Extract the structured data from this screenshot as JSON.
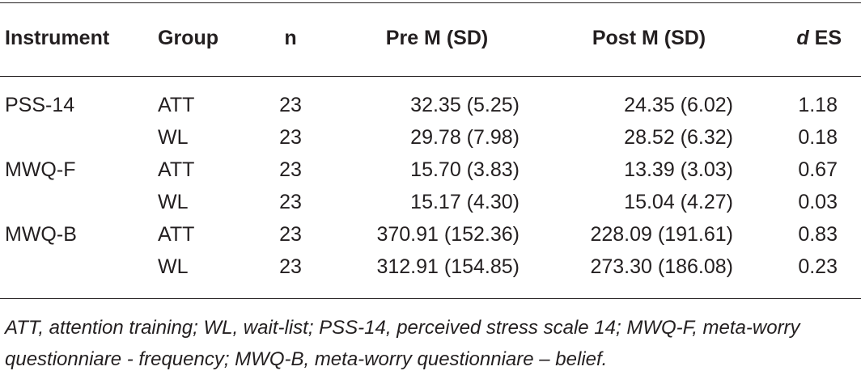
{
  "table": {
    "headers": {
      "instrument": "Instrument",
      "group": "Group",
      "n": "n",
      "pre": "Pre M (SD)",
      "post": "Post M (SD)",
      "es_italic": "d",
      "es": " ES"
    },
    "rows": [
      {
        "instrument": "PSS-14",
        "group": "ATT",
        "n": "23",
        "pre": "32.35 (5.25)",
        "post": "24.35 (6.02)",
        "es": "1.18"
      },
      {
        "instrument": "",
        "group": "WL",
        "n": "23",
        "pre": "29.78 (7.98)",
        "post": "28.52 (6.32)",
        "es": "0.18"
      },
      {
        "instrument": "MWQ-F",
        "group": "ATT",
        "n": "23",
        "pre": "15.70 (3.83)",
        "post": "13.39 (3.03)",
        "es": "0.67"
      },
      {
        "instrument": "",
        "group": "WL",
        "n": "23",
        "pre": "15.17 (4.30)",
        "post": "15.04 (4.27)",
        "es": "0.03"
      },
      {
        "instrument": "MWQ-B",
        "group": "ATT",
        "n": "23",
        "pre": "370.91 (152.36)",
        "post": "228.09 (191.61)",
        "es": "0.83"
      },
      {
        "instrument": "",
        "group": "WL",
        "n": "23",
        "pre": "312.91 (154.85)",
        "post": "273.30 (186.08)",
        "es": "0.23"
      }
    ],
    "footnote": "ATT, attention training; WL, wait-list; PSS-14, perceived stress scale 14; MWQ-F, meta-worry questionniare - frequency; MWQ-B, meta-worry questionniare – belief."
  }
}
